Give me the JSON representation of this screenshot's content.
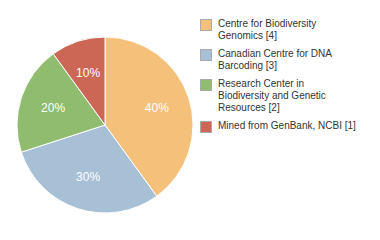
{
  "chart_data": {
    "type": "pie",
    "categories": [
      "Centre for Biodiversity\nGenomics [4]",
      "Canadian Centre for DNA\nBarcoding [3]",
      "Research Center in\nBiodiversity and Genetic\nResources [2]",
      "Mined from GenBank, NCBI [1]"
    ],
    "values": [
      40,
      30,
      20,
      10
    ],
    "value_labels": [
      "40%",
      "30%",
      "20%",
      "10%"
    ],
    "data_labels": true,
    "colors": [
      "#f5c07a",
      "#a8c0d6",
      "#8fbc6e",
      "#cc6655"
    ],
    "legend": "right"
  }
}
